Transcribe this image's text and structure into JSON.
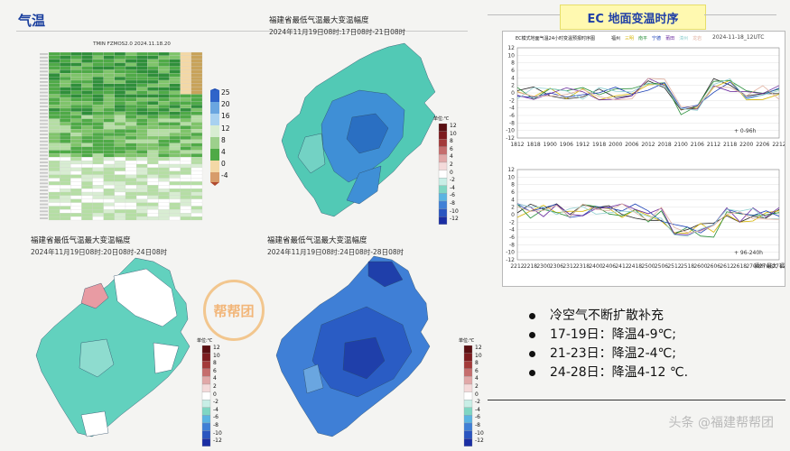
{
  "header": {
    "title": "气温"
  },
  "heatmap": {
    "caption": "TMIN FZMOS2.0 2024.11.18.20"
  },
  "scale_left": {
    "labels": [
      "25",
      "20",
      "16",
      "12",
      "8",
      "4",
      "0",
      "-4"
    ]
  },
  "scale_diverging": {
    "labels": [
      "12",
      "10",
      "8",
      "6",
      "4",
      "2",
      "0",
      "-2",
      "-4",
      "-6",
      "-8",
      "-10",
      "-12"
    ],
    "unit": "单位:℃"
  },
  "map1": {
    "title": "福建省最低气温最大变温幅度",
    "subtitle": "2024年11月19日08时:17日08时-21日08时"
  },
  "map2": {
    "title": "福建省最低气温最大变温幅度",
    "subtitle": "2024年11月19日08时:20日08时-24日08时"
  },
  "map3": {
    "title": "福建省最低气温最大变温幅度",
    "subtitle": "2024年11月19日08时:24日08时-28日08时"
  },
  "ec": {
    "title": "EC 地面变温时序",
    "chart1_title": "EC模式地面气温24小时变温预报时序图",
    "chart1_legend": [
      "福州",
      "三明",
      "南平",
      "宁德",
      "莆田",
      "漳州",
      "龙岩"
    ],
    "chart1_date": "2024-11-18_12UTC",
    "chart1_range": "0-96h",
    "chart2_range": "96-240h",
    "chart2_corner": "福州 最大 福建之友",
    "xticks1": [
      "1812",
      "1818",
      "1900",
      "1906",
      "1912",
      "1918",
      "2000",
      "2006",
      "2012",
      "2018",
      "2100",
      "2106",
      "2112",
      "2118",
      "2200",
      "2206",
      "2212"
    ],
    "xticks2": [
      "2212",
      "2218",
      "2300",
      "2306",
      "2312",
      "2318",
      "2400",
      "2406",
      "2412",
      "2418",
      "2500",
      "2506",
      "2512",
      "2518",
      "2600",
      "2606",
      "2612",
      "2618",
      "2700",
      "2706",
      "2712"
    ],
    "yticks": [
      "12",
      "10",
      "8",
      "6",
      "4",
      "2",
      "0",
      "-2",
      "-4",
      "-6",
      "-8",
      "-10",
      "-12"
    ]
  },
  "bullets": [
    "冷空气不断扩散补充",
    "17-19日：降温4-9℃;",
    "21-23日：降温2-4℃;",
    "24-28日：降温4-12 ℃."
  ],
  "watermark": {
    "stamp": "帮帮团",
    "text": "头条 @福建帮帮团"
  },
  "colors": {
    "accent": "#1a3f9e",
    "ec_title_bg": "#fff9b0"
  }
}
